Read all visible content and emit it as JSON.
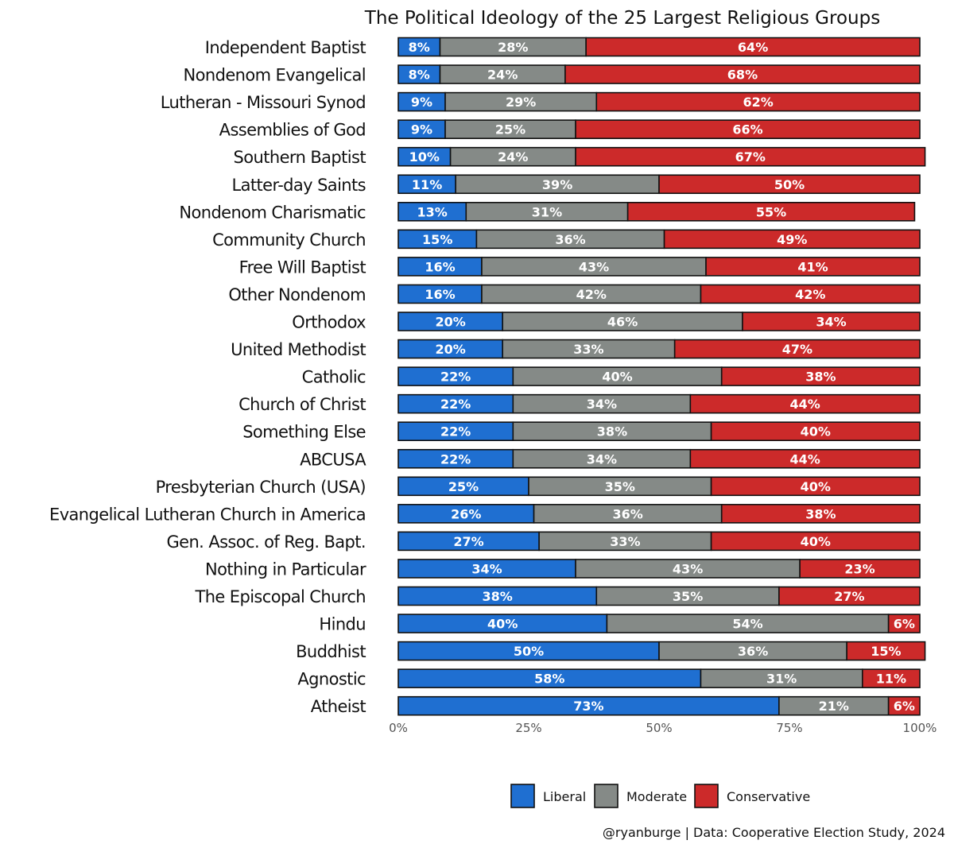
{
  "chart_data": {
    "type": "bar",
    "orientation": "horizontal",
    "stacked": true,
    "title": "The Political Ideology of the 25 Largest Religious Groups",
    "categories": [
      "Independent Baptist",
      "Nondenom Evangelical",
      "Lutheran - Missouri Synod",
      "Assemblies of God",
      "Southern Baptist",
      "Latter-day Saints",
      "Nondenom Charismatic",
      "Community Church",
      "Free Will Baptist",
      "Other Nondenom",
      "Orthodox",
      "United Methodist",
      "Catholic",
      "Church of Christ",
      "Something Else",
      "ABCUSA",
      "Presbyterian Church (USA)",
      "Evangelical Lutheran Church in America",
      "Gen. Assoc. of Reg. Bapt.",
      "Nothing in Particular",
      "The Episcopal Church",
      "Hindu",
      "Buddhist",
      "Agnostic",
      "Atheist"
    ],
    "series": [
      {
        "name": "Liberal",
        "color": "#1f6fd1",
        "values": [
          8,
          8,
          9,
          9,
          10,
          11,
          13,
          15,
          16,
          16,
          20,
          20,
          22,
          22,
          22,
          22,
          25,
          26,
          27,
          34,
          38,
          40,
          50,
          58,
          73
        ]
      },
      {
        "name": "Moderate",
        "color": "#858a87",
        "values": [
          28,
          24,
          29,
          25,
          24,
          39,
          31,
          36,
          43,
          42,
          46,
          33,
          40,
          34,
          38,
          34,
          35,
          36,
          33,
          43,
          35,
          54,
          36,
          31,
          21
        ]
      },
      {
        "name": "Conservative",
        "color": "#cc2a2a",
        "values": [
          64,
          68,
          62,
          66,
          67,
          50,
          55,
          49,
          41,
          42,
          34,
          47,
          38,
          44,
          40,
          44,
          40,
          38,
          40,
          23,
          27,
          6,
          15,
          11,
          6
        ]
      }
    ],
    "xlim": [
      0,
      100
    ],
    "xticks": [
      0,
      25,
      50,
      75,
      100
    ],
    "xtick_labels": [
      "0%",
      "25%",
      "50%",
      "75%",
      "100%"
    ],
    "xlabel": "",
    "ylabel": "",
    "value_suffix": "%",
    "grid": false,
    "legend": {
      "position": "bottom",
      "entries": [
        "Liberal",
        "Moderate",
        "Conservative"
      ]
    }
  },
  "caption": "@ryanburge | Data: Cooperative Election Study, 2024"
}
